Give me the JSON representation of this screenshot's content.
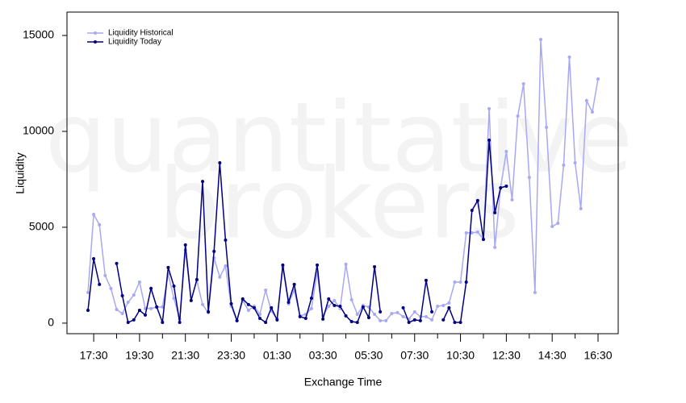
{
  "chart_data": {
    "type": "line",
    "watermark": [
      "quantitative",
      "brokers"
    ],
    "x_label": "Exchange Time",
    "y_label": "Liquidity",
    "legend": "upper left",
    "categories": [
      null,
      "17:30",
      null,
      null,
      null,
      null,
      null,
      null,
      null,
      "19:30",
      null,
      null,
      null,
      null,
      null,
      null,
      null,
      "21:30",
      null,
      null,
      null,
      null,
      null,
      null,
      null,
      "23:30",
      null,
      null,
      null,
      null,
      null,
      null,
      null,
      "01:30",
      null,
      null,
      null,
      null,
      null,
      null,
      null,
      "03:30",
      null,
      null,
      null,
      null,
      null,
      null,
      null,
      "05:30",
      null,
      null,
      null,
      null,
      null,
      null,
      null,
      "07:30",
      null,
      null,
      null,
      null,
      null,
      null,
      null,
      "10:30",
      null,
      null,
      null,
      null,
      null,
      null,
      null,
      "12:30",
      null,
      null,
      null,
      null,
      null,
      null,
      null,
      "14:30",
      null,
      null,
      null,
      null,
      null,
      null,
      null,
      "16:30"
    ],
    "ylim": [
      -550,
      16220
    ],
    "yticks": [
      0,
      5000,
      10000,
      15000
    ],
    "series": [
      {
        "name": "Liquidity Historical",
        "color": "#a8a8f4",
        "values": [
          1600,
          5670,
          5130,
          2480,
          1810,
          710,
          500,
          1090,
          1470,
          2140,
          760,
          760,
          840,
          840,
          2560,
          1300,
          210,
          3820,
          1180,
          2230,
          970,
          550,
          3400,
          2400,
          2980,
          880,
          130,
          1180,
          670,
          880,
          460,
          1720,
          630,
          210,
          2900,
          1010,
          1720,
          380,
          460,
          760,
          2650,
          380,
          880,
          1180,
          760,
          3070,
          1220,
          460,
          920,
          840,
          460,
          130,
          130,
          500,
          550,
          340,
          210,
          590,
          340,
          340,
          170,
          880,
          920,
          1050,
          2140,
          2140,
          4710,
          4710,
          4750,
          4370,
          11180,
          3950,
          7060,
          8950,
          6430,
          10800,
          12480,
          7600,
          1600,
          14790,
          10210,
          5040,
          5210,
          8240,
          13870,
          8360,
          5970,
          11600,
          11010,
          12730
        ]
      },
      {
        "name": "Liquidity Today",
        "color": "#000080",
        "values": [
          670,
          3360,
          2020,
          null,
          null,
          3110,
          1430,
          40,
          170,
          670,
          420,
          1810,
          840,
          40,
          2900,
          1930,
          40,
          4080,
          1180,
          2270,
          7390,
          590,
          3740,
          8360,
          4330,
          1010,
          130,
          1260,
          970,
          800,
          250,
          40,
          800,
          170,
          3030,
          1090,
          2020,
          340,
          250,
          1300,
          3030,
          210,
          1260,
          920,
          880,
          380,
          80,
          40,
          840,
          290,
          2940,
          590,
          null,
          null,
          null,
          800,
          40,
          170,
          130,
          2230,
          590,
          null,
          170,
          800,
          40,
          40,
          2140,
          5880,
          6390,
          4370,
          9540,
          5760,
          7060,
          7140,
          null,
          null,
          null,
          null,
          null,
          null,
          null,
          null,
          null,
          null,
          null,
          null,
          null,
          null,
          null,
          null
        ]
      }
    ]
  }
}
